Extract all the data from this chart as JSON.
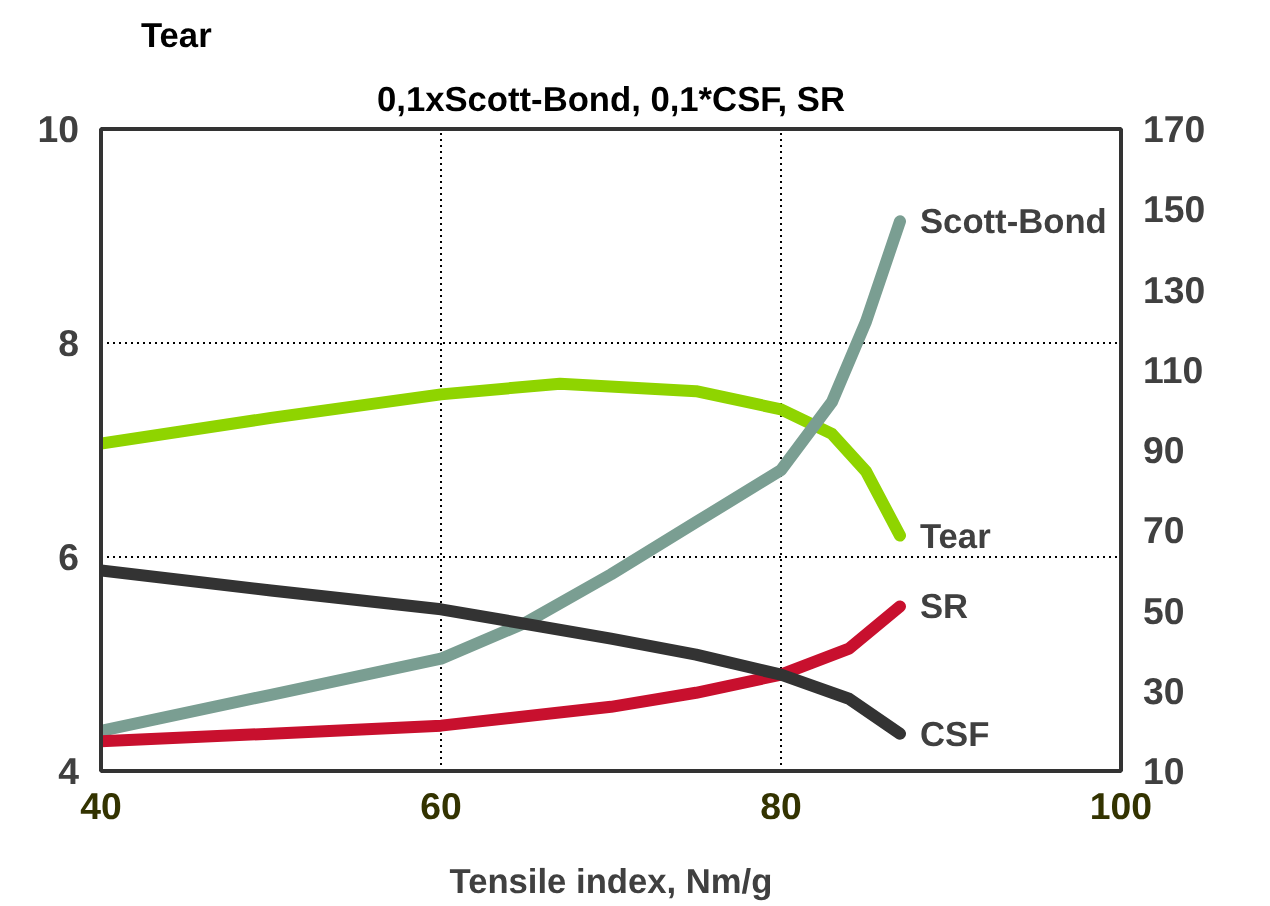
{
  "chart_data": {
    "type": "line",
    "title": "0,1xScott-Bond, 0,1*CSF, SR",
    "ylabel": "Tear",
    "xlabel": "Tensile index, Nm/g",
    "xlim": [
      40,
      100
    ],
    "xticks": [
      40,
      60,
      80,
      100
    ],
    "ylim": [
      4,
      10
    ],
    "yticks": [
      4,
      6,
      8,
      10
    ],
    "y2lim": [
      10,
      170
    ],
    "y2ticks": [
      10,
      30,
      50,
      70,
      90,
      110,
      130,
      150,
      170
    ],
    "grid": true,
    "line_style": "solid",
    "series": [
      {
        "name": "Tear",
        "color": "#8fd400",
        "x": [
          40,
          50,
          60,
          67,
          75,
          80,
          83,
          85,
          87
        ],
        "values": [
          7.06,
          7.3,
          7.52,
          7.62,
          7.55,
          7.38,
          7.15,
          6.8,
          6.2
        ]
      },
      {
        "name": "Scott-Bond",
        "color": "#7a9e92",
        "axis": "y2",
        "x": [
          40,
          50,
          60,
          65,
          70,
          75,
          80,
          83,
          85,
          87
        ],
        "values": [
          20,
          29,
          38,
          47,
          59,
          72,
          85,
          102,
          122,
          147
        ]
      },
      {
        "name": "SR",
        "color": "#c8102e",
        "axis": "y2",
        "x": [
          40,
          50,
          60,
          70,
          75,
          80,
          84,
          87
        ],
        "values": [
          17.4,
          19.3,
          21.3,
          26,
          29.5,
          34,
          40.5,
          51
        ]
      },
      {
        "name": "CSF",
        "color": "#333333",
        "axis": "y2",
        "x": [
          40,
          50,
          60,
          70,
          75,
          80,
          84,
          87
        ],
        "values": [
          60,
          55,
          50.3,
          43,
          39,
          34,
          28,
          19.3
        ]
      }
    ]
  }
}
